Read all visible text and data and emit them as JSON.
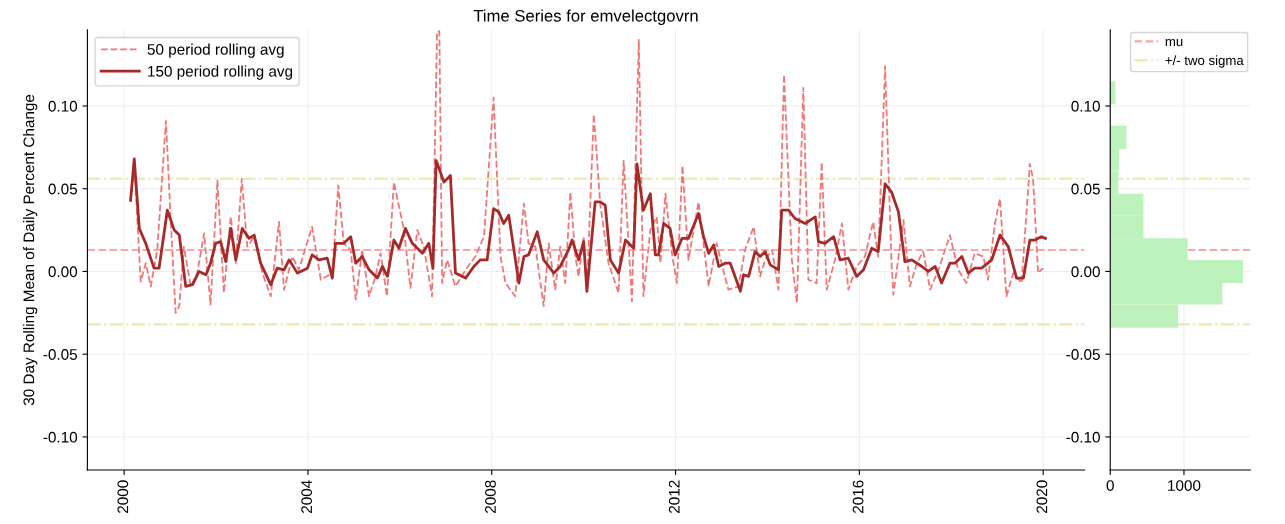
{
  "chart_data": [
    {
      "type": "line",
      "title": "Time Series for emvelectgovrn",
      "ylabel": "30 Day Rolling Mean of Daily Percent Change",
      "xlim": [
        1999.2,
        2020.9
      ],
      "xticks": [
        2000,
        2004,
        2008,
        2012,
        2016,
        2020
      ],
      "ylim": [
        -0.12,
        0.146
      ],
      "yticks": [
        {
          "value": -0.1,
          "label": "-0.10"
        },
        {
          "value": -0.05,
          "label": "-0.05"
        },
        {
          "value": 0.0,
          "label": "0.00"
        },
        {
          "value": 0.05,
          "label": "0.05"
        },
        {
          "value": 0.1,
          "label": "0.10"
        }
      ],
      "grid": true,
      "legend": "top left",
      "ref_lines": [
        {
          "axis": "y",
          "value": 0.013,
          "label": null,
          "color": "#f7a8a8",
          "line_style": "dashed"
        },
        {
          "axis": "y",
          "value": 0.056,
          "label": null,
          "color": "#e6eab0",
          "line_style": "dashdot"
        },
        {
          "axis": "y",
          "value": -0.032,
          "label": null,
          "color": "#e6eab0",
          "line_style": "dashdot"
        }
      ],
      "series": [
        {
          "name": "50 period rolling avg",
          "color": "#f07878",
          "line_style": "dashed",
          "x": [
            2000.14,
            2000.22,
            2000.36,
            2000.47,
            2000.58,
            2000.72,
            2000.91,
            2001.01,
            2001.12,
            2001.2,
            2001.3,
            2001.45,
            2001.59,
            2001.74,
            2001.88,
            2002.03,
            2002.17,
            2002.32,
            2002.43,
            2002.56,
            2002.68,
            2002.83,
            2003.01,
            2003.19,
            2003.37,
            2003.48,
            2003.66,
            2003.8,
            2004.09,
            2004.28,
            2004.53,
            2004.66,
            2004.78,
            2004.93,
            2005.04,
            2005.18,
            2005.33,
            2005.47,
            2005.58,
            2005.72,
            2005.87,
            2006.09,
            2006.23,
            2006.38,
            2006.52,
            2006.7,
            2006.81,
            2006.86,
            2006.92,
            2007.03,
            2007.21,
            2007.43,
            2007.64,
            2007.83,
            2008.04,
            2008.19,
            2008.3,
            2008.51,
            2008.7,
            2008.8,
            2008.95,
            2009.13,
            2009.24,
            2009.38,
            2009.49,
            2009.6,
            2009.71,
            2009.82,
            2009.89,
            2010.0,
            2010.07,
            2010.22,
            2010.36,
            2010.54,
            2010.76,
            2010.87,
            2011.05,
            2011.2,
            2011.3,
            2011.45,
            2011.59,
            2011.67,
            2011.78,
            2011.93,
            2012.03,
            2012.15,
            2012.28,
            2012.5,
            2012.72,
            2012.89,
            2013.15,
            2013.37,
            2013.51,
            2013.7,
            2013.84,
            2013.95,
            2014.1,
            2014.24,
            2014.36,
            2014.53,
            2014.64,
            2014.78,
            2014.89,
            2015.07,
            2015.18,
            2015.29,
            2015.47,
            2015.62,
            2015.76,
            2015.94,
            2016.12,
            2016.3,
            2016.41,
            2016.56,
            2016.7,
            2016.74,
            2016.96,
            2017.1,
            2017.25,
            2017.39,
            2017.54,
            2017.72,
            2017.97,
            2018.15,
            2018.33,
            2018.51,
            2018.7,
            2018.8,
            2018.95,
            2019.06,
            2019.2,
            2019.35,
            2019.53,
            2019.71,
            2019.78,
            2019.89,
            2020.0
          ],
          "values": [
            0.042,
            0.066,
            -0.006,
            0.005,
            -0.009,
            0.013,
            0.091,
            0.033,
            -0.025,
            -0.021,
            0.015,
            -0.009,
            -0.001,
            0.023,
            -0.02,
            0.055,
            -0.013,
            0.033,
            0.005,
            0.056,
            0.015,
            0.021,
            -0.001,
            -0.015,
            0.03,
            -0.011,
            0.009,
            0.001,
            0.027,
            -0.005,
            -0.001,
            0.052,
            0.017,
            0.013,
            -0.017,
            0.013,
            -0.015,
            -0.003,
            0.011,
            -0.015,
            0.054,
            0.025,
            -0.01,
            0.025,
            0.015,
            -0.015,
            0.145,
            0.145,
            -0.007,
            0.007,
            -0.009,
            0.001,
            0.009,
            0.021,
            0.105,
            0.009,
            -0.007,
            -0.015,
            0.041,
            0.017,
            0.015,
            -0.021,
            0.017,
            -0.011,
            0.015,
            -0.007,
            0.048,
            0.009,
            -0.003,
            0.021,
            -0.011,
            0.095,
            0.041,
            0.005,
            -0.013,
            0.067,
            -0.018,
            0.14,
            -0.015,
            0.025,
            0.033,
            0.005,
            0.047,
            0.009,
            -0.007,
            0.064,
            0.007,
            0.042,
            -0.009,
            0.017,
            -0.011,
            -0.009,
            0.013,
            0.027,
            -0.003,
            0.007,
            0.013,
            -0.011,
            0.119,
            0.007,
            -0.019,
            0.111,
            -0.005,
            -0.007,
            0.066,
            -0.011,
            0.007,
            0.029,
            -0.011,
            0.003,
            0.009,
            0.03,
            0.009,
            0.124,
            0.005,
            -0.014,
            0.031,
            -0.009,
            0.005,
            0.012,
            -0.011,
            0.001,
            0.022,
            0.001,
            -0.007,
            0.011,
            0.009,
            -0.005,
            0.029,
            0.044,
            -0.015,
            -0.001,
            -0.007,
            0.065,
            0.056,
            -0.001,
            0.002
          ]
        },
        {
          "name": "150 period rolling avg",
          "color": "#a52a2a",
          "line_style": "solid",
          "x": [
            2000.14,
            2000.22,
            2000.33,
            2000.47,
            2000.65,
            2000.76,
            2000.94,
            2001.09,
            2001.2,
            2001.34,
            2001.49,
            2001.63,
            2001.78,
            2001.88,
            2001.99,
            2002.1,
            2002.21,
            2002.32,
            2002.43,
            2002.57,
            2002.72,
            2002.83,
            2002.97,
            2003.19,
            2003.33,
            2003.48,
            2003.59,
            2003.77,
            2003.99,
            2004.09,
            2004.24,
            2004.42,
            2004.53,
            2004.6,
            2004.78,
            2004.93,
            2005.04,
            2005.18,
            2005.33,
            2005.51,
            2005.62,
            2005.73,
            2005.87,
            2005.98,
            2006.12,
            2006.27,
            2006.38,
            2006.49,
            2006.63,
            2006.72,
            2006.79,
            2006.96,
            2007.1,
            2007.21,
            2007.43,
            2007.61,
            2007.75,
            2007.9,
            2008.04,
            2008.15,
            2008.26,
            2008.37,
            2008.59,
            2008.7,
            2008.8,
            2008.99,
            2009.13,
            2009.35,
            2009.49,
            2009.67,
            2009.75,
            2009.89,
            2010.0,
            2010.07,
            2010.25,
            2010.36,
            2010.47,
            2010.58,
            2010.76,
            2010.91,
            2011.09,
            2011.16,
            2011.3,
            2011.45,
            2011.56,
            2011.63,
            2011.74,
            2011.88,
            2011.99,
            2012.14,
            2012.28,
            2012.5,
            2012.61,
            2012.72,
            2012.83,
            2012.94,
            2013.08,
            2013.19,
            2013.41,
            2013.48,
            2013.59,
            2013.73,
            2013.84,
            2013.95,
            2014.06,
            2014.24,
            2014.31,
            2014.46,
            2014.6,
            2014.82,
            2015.04,
            2015.11,
            2015.25,
            2015.44,
            2015.58,
            2015.76,
            2015.94,
            2016.09,
            2016.27,
            2016.41,
            2016.56,
            2016.7,
            2016.85,
            2016.99,
            2017.14,
            2017.36,
            2017.5,
            2017.65,
            2017.79,
            2017.97,
            2018.08,
            2018.23,
            2018.37,
            2018.51,
            2018.66,
            2018.88,
            2019.06,
            2019.24,
            2019.42,
            2019.57,
            2019.71,
            2019.82,
            2019.96,
            2020.05
          ],
          "values": [
            0.043,
            0.068,
            0.026,
            0.017,
            0.002,
            0.002,
            0.037,
            0.025,
            0.022,
            -0.009,
            -0.008,
            0.0,
            -0.002,
            0.005,
            0.017,
            0.018,
            0.006,
            0.026,
            0.007,
            0.026,
            0.02,
            0.022,
            0.005,
            -0.008,
            0.002,
            0.001,
            0.007,
            -0.001,
            0.002,
            0.01,
            0.007,
            0.008,
            -0.004,
            0.017,
            0.017,
            0.021,
            0.005,
            0.009,
            0.001,
            -0.004,
            0.003,
            -0.003,
            0.019,
            0.014,
            0.026,
            0.017,
            0.014,
            0.011,
            0.017,
            0.002,
            0.067,
            0.054,
            0.058,
            -0.001,
            -0.004,
            0.003,
            0.007,
            0.007,
            0.038,
            0.036,
            0.029,
            0.034,
            -0.007,
            0.009,
            0.01,
            0.024,
            0.007,
            -0.001,
            0.003,
            0.013,
            0.019,
            0.007,
            0.018,
            -0.012,
            0.042,
            0.042,
            0.04,
            0.007,
            -0.001,
            0.019,
            0.014,
            0.065,
            0.037,
            0.047,
            0.01,
            0.01,
            0.029,
            0.026,
            0.01,
            0.02,
            0.02,
            0.035,
            0.021,
            0.011,
            0.016,
            0.003,
            0.005,
            0.005,
            -0.012,
            -0.002,
            -0.003,
            0.012,
            0.009,
            0.012,
            0.004,
            0.001,
            0.037,
            0.037,
            0.032,
            0.029,
            0.033,
            0.018,
            0.017,
            0.021,
            0.007,
            0.008,
            -0.003,
            0.001,
            0.014,
            0.012,
            0.053,
            0.048,
            0.036,
            0.006,
            0.007,
            0.003,
            0.0,
            0.003,
            -0.007,
            0.005,
            0.005,
            0.009,
            -0.001,
            0.002,
            0.002,
            0.007,
            0.022,
            0.015,
            -0.004,
            -0.004,
            0.019,
            0.019,
            0.021,
            0.02
          ]
        }
      ]
    },
    {
      "type": "histogram",
      "orientation": "horizontal",
      "color": "#bdf2bd",
      "bins": [
        -0.034,
        -0.02,
        -0.007,
        0.007,
        0.02,
        0.034,
        0.047,
        0.061,
        0.074,
        0.088,
        0.101,
        0.115
      ],
      "values": [
        920,
        1520,
        1800,
        1050,
        450,
        450,
        110,
        120,
        220,
        0,
        70
      ],
      "xlim": [
        0,
        1900
      ],
      "xticks": [
        0,
        1000
      ],
      "ylim": [
        -0.12,
        0.146
      ],
      "yticks": [
        {
          "value": -0.1,
          "label": "-0.10"
        },
        {
          "value": -0.05,
          "label": "-0.05"
        },
        {
          "value": 0.0,
          "label": "0.00"
        },
        {
          "value": 0.05,
          "label": "0.05"
        },
        {
          "value": 0.1,
          "label": "0.10"
        }
      ],
      "grid": true,
      "legend": "top right",
      "ref_lines": [
        {
          "axis": "y",
          "value": 0.013,
          "label": "mu",
          "color": "#f7a8a8",
          "line_style": "dashed"
        },
        {
          "axis": "y",
          "value": 0.056,
          "label": "+/- two sigma",
          "color": "#e6eab0",
          "line_style": "dashdot"
        },
        {
          "axis": "y",
          "value": -0.032,
          "label": null,
          "color": "#e6eab0",
          "line_style": "dashdot"
        }
      ]
    }
  ]
}
